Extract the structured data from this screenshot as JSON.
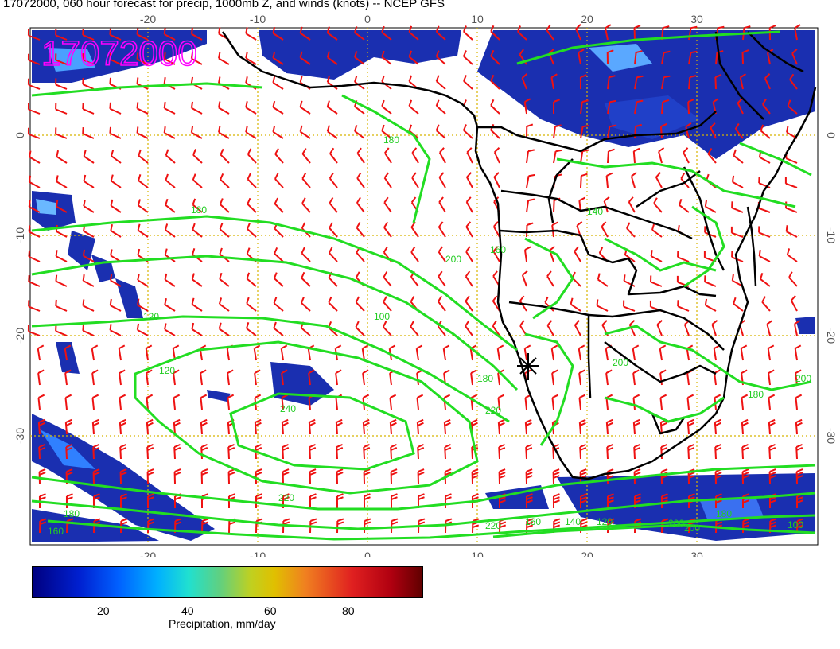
{
  "title": "17072000, 060 hour forecast for precip, 1000mb Z, and winds (knots) -- NCEP GFS",
  "date_stamp": "17072000",
  "colors": {
    "ocean_bg": "#ffffff",
    "coastline": "#000000",
    "contour": "#22dd22",
    "wind_barb": "#ee1111",
    "grid": "#d8b400",
    "date_stamp": "#ff00ff"
  },
  "x_ticks": [
    "-20",
    "-10",
    "0",
    "10",
    "20",
    "30"
  ],
  "y_ticks": [
    "0",
    "-10",
    "-20",
    "-30"
  ],
  "contour_labels": [
    "180",
    "180",
    "160",
    "140",
    "120",
    "120",
    "240",
    "220",
    "200",
    "220",
    "180",
    "160",
    "140",
    "120",
    "200",
    "180",
    "160",
    "180",
    "200",
    "180",
    "200",
    "220",
    "200",
    "100",
    "100"
  ],
  "colorbar": {
    "label": "Precipitation, mm/day",
    "ticks": [
      "20",
      "40",
      "60",
      "80"
    ]
  }
}
